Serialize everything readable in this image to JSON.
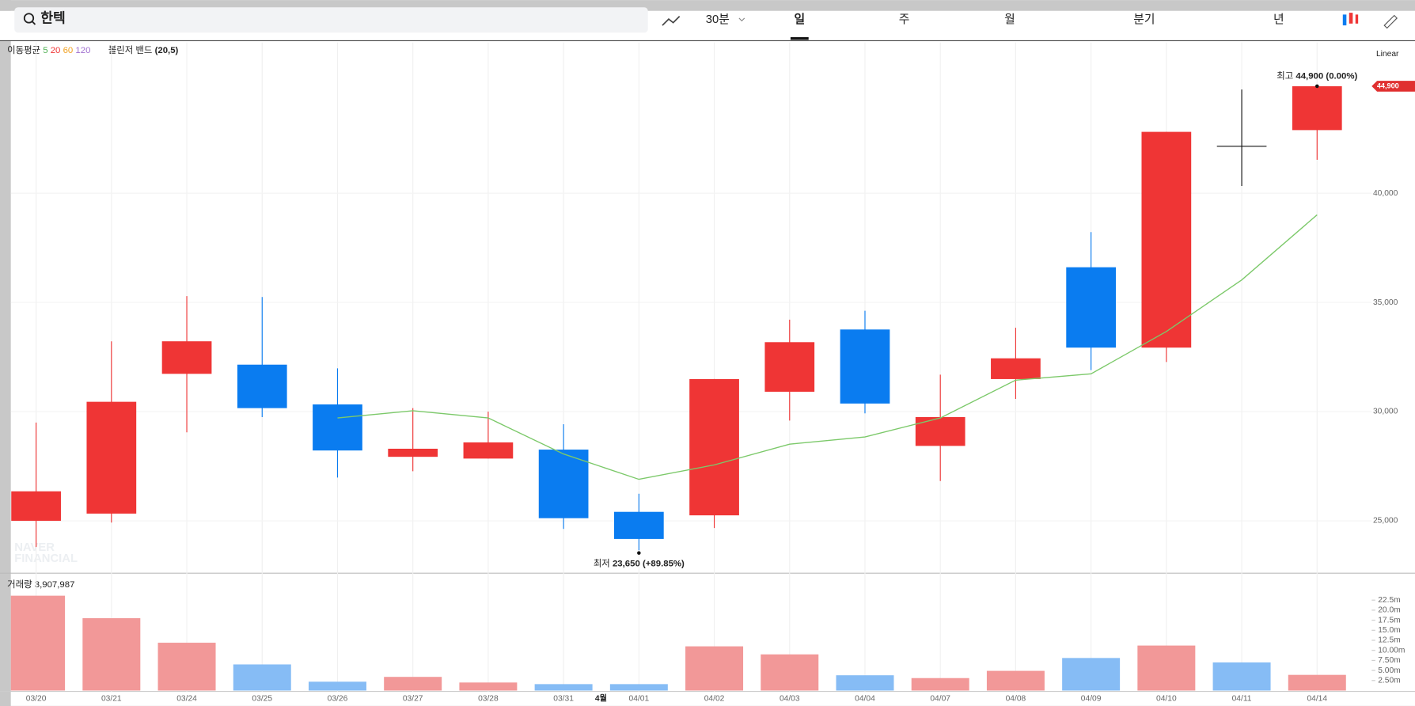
{
  "toolbar": {
    "search": "한텍",
    "interval": "30분",
    "tabs": [
      "일",
      "주",
      "월",
      "분기",
      "년"
    ]
  },
  "indicators": {
    "ma_label": "이동평균",
    "ma_periods": [
      "5",
      "20",
      "60",
      "120"
    ],
    "bb_label": "볼린저 밴드",
    "bb_params": "(20,5)"
  },
  "scale_mode": "Linear",
  "watermark": [
    "NAVER",
    "FINANCIAL"
  ],
  "month_marker": "4월",
  "chart_data": [
    {
      "type": "candlestick",
      "categories": [
        "03/20",
        "03/21",
        "03/24",
        "03/25",
        "03/26",
        "03/27",
        "03/28",
        "03/31",
        "04/01",
        "04/02",
        "04/03",
        "04/04",
        "04/07",
        "04/08",
        "04/09",
        "04/10",
        "04/11",
        "04/14"
      ],
      "open": [
        25000,
        25330,
        31730,
        32150,
        30330,
        27930,
        27850,
        28260,
        25410,
        25250,
        30910,
        33760,
        28430,
        31490,
        36610,
        32930,
        42150,
        42890
      ],
      "high": [
        29500,
        33220,
        35290,
        35250,
        31980,
        30160,
        30000,
        29420,
        26240,
        31490,
        34210,
        34620,
        31690,
        33840,
        38220,
        42810,
        44750,
        44900
      ],
      "low": [
        23800,
        24920,
        29050,
        29750,
        26980,
        27270,
        27850,
        24630,
        23650,
        24670,
        29590,
        29920,
        26820,
        30580,
        31900,
        32270,
        40330,
        41530
      ],
      "close": [
        26350,
        30450,
        33220,
        30160,
        28220,
        28300,
        28590,
        25120,
        24170,
        31490,
        33180,
        30370,
        29750,
        32440,
        32930,
        42810,
        42150,
        44900
      ],
      "up_color": "#ef3535",
      "down_color": "#0a7cf0",
      "ma": {
        "color": "#7cc96a",
        "values": [
          null,
          null,
          null,
          null,
          29710,
          30040,
          29710,
          28060,
          26900,
          27560,
          28510,
          28840,
          29710,
          31440,
          31730,
          33670,
          36030,
          39010
        ]
      },
      "ylim": [
        22600,
        46900
      ],
      "yticks": [
        {
          "value": 25000,
          "label": "25,000"
        },
        {
          "value": 30000,
          "label": "30,000"
        },
        {
          "value": 35000,
          "label": "35,000"
        },
        {
          "value": 40000,
          "label": "40,000"
        }
      ],
      "last_price_label": "44,900",
      "max_annotation": {
        "label": "최고",
        "text": "44,900 (0.00%)"
      },
      "min_annotation": {
        "label": "최저",
        "text": "23,650 (+89.85%)"
      },
      "grid": true
    },
    {
      "type": "bar",
      "title": "거래량",
      "last_value_label": "3,907,987",
      "values": [
        23.6,
        18.0,
        11.9,
        6.5,
        2.2,
        3.4,
        2.0,
        1.6,
        1.6,
        11.0,
        9.0,
        3.8,
        3.1,
        4.9,
        8.1,
        11.2,
        7.0,
        3.9
      ],
      "up_color": "#f29898",
      "down_color": "#86bcf5",
      "ylim": [
        0,
        24.7
      ],
      "yticks": [
        {
          "value": 2.5,
          "label": "2.50m"
        },
        {
          "value": 5,
          "label": "5.00m"
        },
        {
          "value": 7.5,
          "label": "7.50m"
        },
        {
          "value": 10,
          "label": "10.00m"
        },
        {
          "value": 12.5,
          "label": "12.5m"
        },
        {
          "value": 15,
          "label": "15.0m"
        },
        {
          "value": 17.5,
          "label": "17.5m"
        },
        {
          "value": 20,
          "label": "20.0m"
        },
        {
          "value": 22.5,
          "label": "22.5m"
        }
      ]
    }
  ]
}
